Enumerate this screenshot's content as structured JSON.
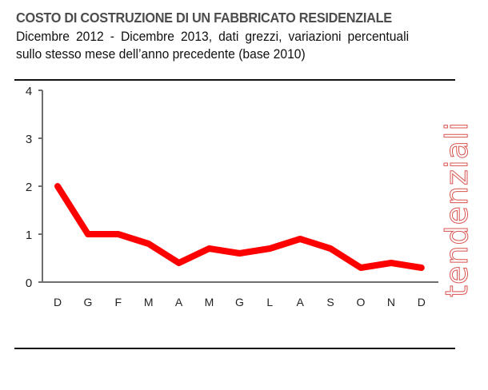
{
  "header": {
    "title": "COSTO DI COSTRUZIONE DI UN FABBRICATO RESIDENZIALE",
    "subtitle_line1": "Dicembre 2012 - Dicembre 2013, dati grezzi, variazioni percentuali",
    "subtitle_line2": "sullo stesso mese dell’anno precedente (base 2010)"
  },
  "side_label": "tendenziali",
  "colors": {
    "series": "#ff0000",
    "axis": "#6e6e6e",
    "side_label": "#d9534f",
    "rule": "#111111"
  },
  "chart_data": {
    "type": "line",
    "title": "COSTO DI COSTRUZIONE DI UN FABBRICATO RESIDENZIALE",
    "subtitle": "Dicembre 2012 - Dicembre 2013, dati grezzi, variazioni percentuali sullo stesso mese dell’anno precedente (base 2010)",
    "categories": [
      "D",
      "G",
      "F",
      "M",
      "A",
      "M",
      "G",
      "L",
      "A",
      "S",
      "O",
      "N",
      "D"
    ],
    "series": [
      {
        "name": "tendenziali",
        "values": [
          2.0,
          1.0,
          1.0,
          0.8,
          0.4,
          0.7,
          0.6,
          0.7,
          0.9,
          0.7,
          0.3,
          0.4,
          0.3
        ]
      }
    ],
    "xlabel": "",
    "ylabel": "",
    "ylim": [
      0,
      4
    ],
    "yticks": [
      0,
      1,
      2,
      3,
      4
    ],
    "grid": false,
    "legend": "none"
  }
}
